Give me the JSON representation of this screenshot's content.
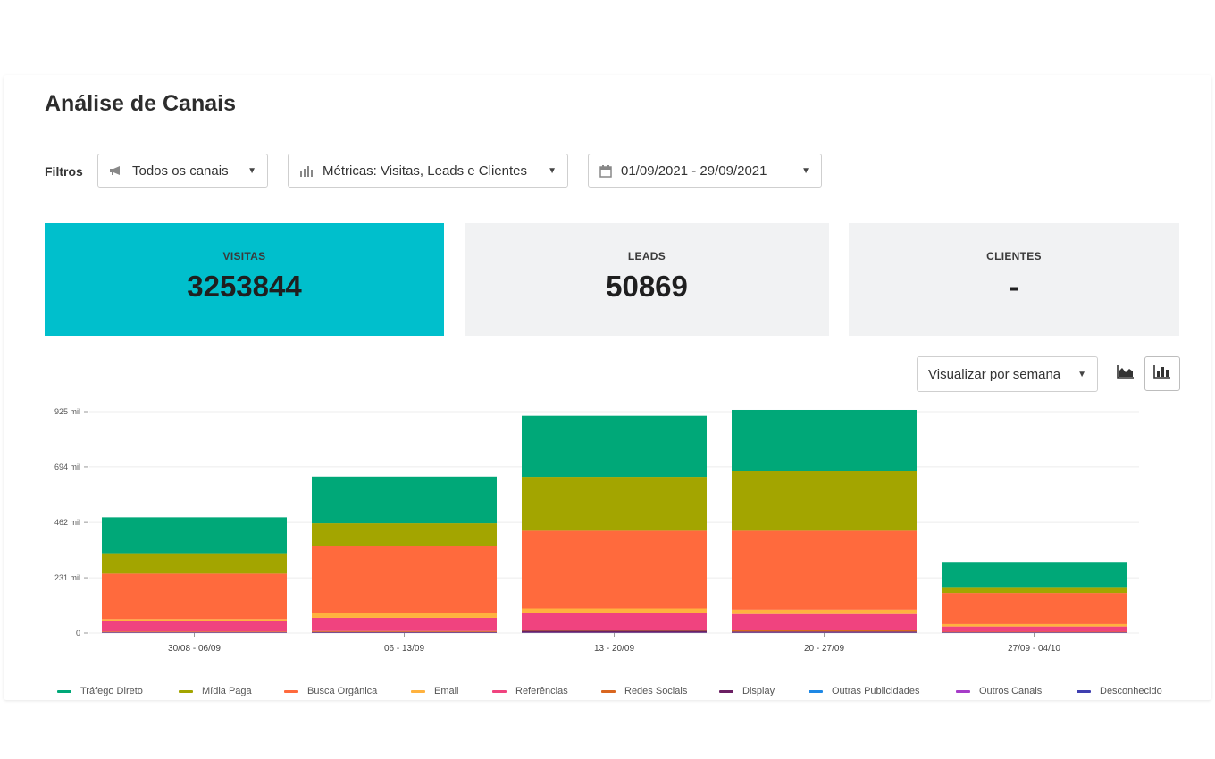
{
  "page": {
    "title": "Análise de Canais"
  },
  "filters": {
    "label": "Filtros",
    "channels": {
      "value": "Todos os canais",
      "icon": "megaphone-icon"
    },
    "metrics": {
      "value": "Métricas: Visitas, Leads e Clientes",
      "icon": "bar-chart-icon"
    },
    "date_range": {
      "value": "01/09/2021 - 29/09/2021",
      "icon": "calendar-icon"
    }
  },
  "cards": [
    {
      "label": "VISITAS",
      "value": "3253844",
      "active": true
    },
    {
      "label": "LEADS",
      "value": "50869",
      "active": false
    },
    {
      "label": "CLIENTES",
      "value": "-",
      "active": false
    }
  ],
  "view": {
    "period_select": "Visualizar por semana",
    "area_icon": "area-chart-icon",
    "bar_icon": "bar-chart-icon",
    "selected": "bar"
  },
  "colors": {
    "accent": "#00bfcc",
    "card_bg": "#f1f2f3"
  },
  "chart_data": {
    "type": "bar",
    "stacked": true,
    "categories": [
      "30/08 - 06/09",
      "06 - 13/09",
      "13 - 20/09",
      "20 - 27/09",
      "27/09 - 04/10"
    ],
    "y_ticks": [
      "0",
      "231 mil",
      "462 mil",
      "694 mil",
      "925 mil"
    ],
    "y_tick_values": [
      0,
      231000,
      462000,
      694000,
      925000
    ],
    "ylim": [
      0,
      925000
    ],
    "grid": true,
    "legend_position": "bottom",
    "series": [
      {
        "name": "Tráfego Direto",
        "color": "#00a878",
        "values": [
          150000,
          195000,
          255000,
          255000,
          105000
        ]
      },
      {
        "name": "Mídia Paga",
        "color": "#a3a500",
        "values": [
          85000,
          95000,
          225000,
          250000,
          25000
        ]
      },
      {
        "name": "Busca Orgânica",
        "color": "#ff6a3d",
        "values": [
          190000,
          280000,
          325000,
          330000,
          130000
        ]
      },
      {
        "name": "Email",
        "color": "#ffb23e",
        "values": [
          10000,
          20000,
          18000,
          18000,
          10000
        ]
      },
      {
        "name": "Referências",
        "color": "#f0437f",
        "values": [
          42000,
          55000,
          70000,
          68000,
          22000
        ]
      },
      {
        "name": "Redes Sociais",
        "color": "#d9661f",
        "values": [
          3000,
          4000,
          5000,
          5000,
          2000
        ]
      },
      {
        "name": "Display",
        "color": "#6b1f63",
        "values": [
          2000,
          3000,
          8000,
          5000,
          2000
        ]
      },
      {
        "name": "Outras Publicidades",
        "color": "#1e88e5",
        "values": [
          500,
          500,
          500,
          500,
          500
        ]
      },
      {
        "name": "Outros Canais",
        "color": "#a63cc8",
        "values": [
          500,
          500,
          500,
          500,
          500
        ]
      },
      {
        "name": "Desconhecido",
        "color": "#3f3fb0",
        "values": [
          500,
          500,
          500,
          500,
          500
        ]
      }
    ]
  }
}
